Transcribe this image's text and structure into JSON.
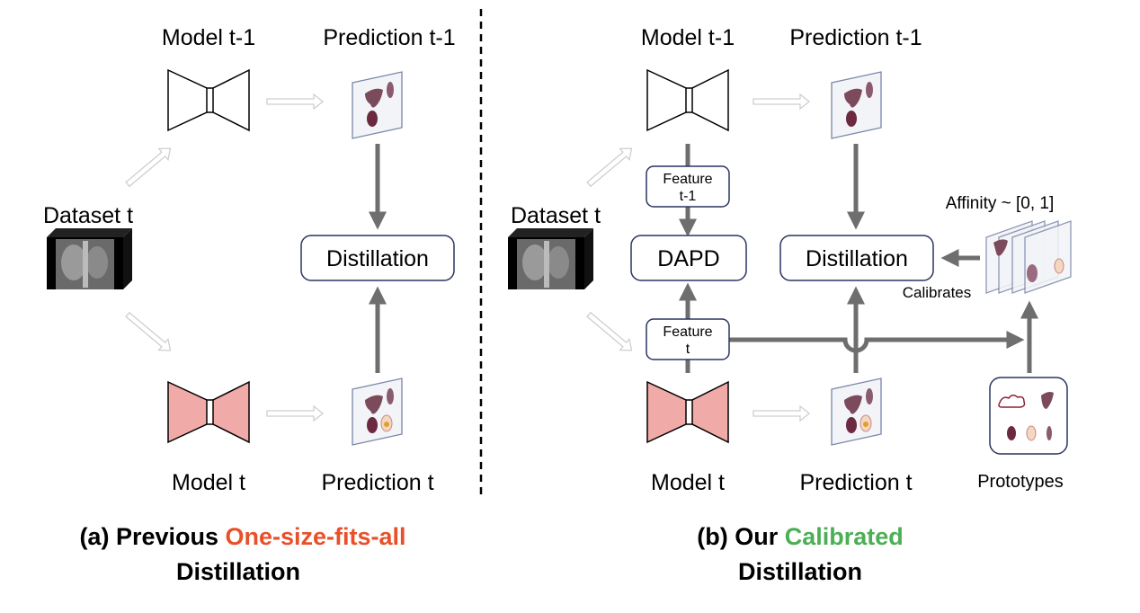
{
  "colors": {
    "highlight_a": "#e8502a",
    "highlight_b": "#4cae55",
    "arrow": "#6e6e6e",
    "student": "#f0aaa8",
    "box_border": "#2a3560"
  },
  "panel_a": {
    "model_prev": "Model t-1",
    "pred_prev": "Prediction t-1",
    "dataset": "Dataset t",
    "distillation": "Distillation",
    "model_cur": "Model t",
    "pred_cur": "Prediction t",
    "caption_prefix": "(a) Previous ",
    "caption_highlight": "One-size-fits-all",
    "caption_line2": "Distillation"
  },
  "panel_b": {
    "model_prev": "Model t-1",
    "pred_prev": "Prediction t-1",
    "dataset": "Dataset t",
    "feature_prev_l1": "Feature",
    "feature_prev_l2": "t-1",
    "dapd": "DAPD",
    "distillation": "Distillation",
    "affinity": "Affinity ~ [0, 1]",
    "calibrates": "Calibrates",
    "feature_cur_l1": "Feature",
    "feature_cur_l2": "t",
    "model_cur": "Model t",
    "pred_cur": "Prediction t",
    "prototypes": "Prototypes",
    "caption_prefix": "(b) Our ",
    "caption_highlight": "Calibrated",
    "caption_line2": "Distillation"
  }
}
